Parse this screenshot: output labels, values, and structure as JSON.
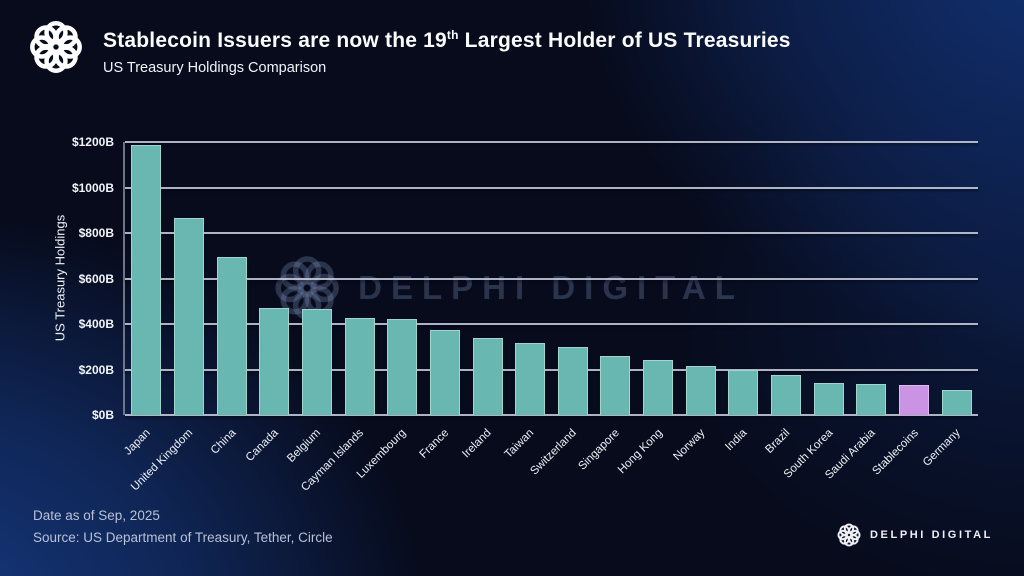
{
  "header": {
    "title_prefix": "Stablecoin Issuers are now the 19",
    "title_superscript": "th",
    "title_suffix": " Largest Holder of US Treasuries",
    "subtitle": "US Treasury Holdings Comparison"
  },
  "chart_data": {
    "type": "bar",
    "title": "US Treasury Holdings Comparison",
    "xlabel": "",
    "ylabel": "US Treasury Holdings",
    "ylim": [
      0,
      1200
    ],
    "ytick_step": 200,
    "ytick_prefix": "$",
    "ytick_suffix": "B",
    "grid": true,
    "legend": "none",
    "categories": [
      "Japan",
      "United Kingdom",
      "China",
      "Canada",
      "Belgium",
      "Cayman Islands",
      "Luxembourg",
      "France",
      "Ireland",
      "Taiwan",
      "Switzerland",
      "Singapore",
      "Hong Kong",
      "Norway",
      "India",
      "Brazil",
      "South Korea",
      "Saudi Arabia",
      "Stablecoins",
      "Germany"
    ],
    "values": [
      1185,
      865,
      695,
      470,
      465,
      425,
      420,
      375,
      340,
      315,
      300,
      260,
      240,
      215,
      200,
      175,
      140,
      135,
      130,
      110
    ],
    "bar_color": "#69b7b1",
    "highlight_category": "Stablecoins",
    "highlight_color": "#cb93e3"
  },
  "watermark": {
    "brand": "DELPHI DIGITAL"
  },
  "footer": {
    "date_note": "Date as of Sep, 2025",
    "source_note": "Source: US Department of Treasury, Tether, Circle",
    "brand": "DELPHI DIGITAL"
  }
}
